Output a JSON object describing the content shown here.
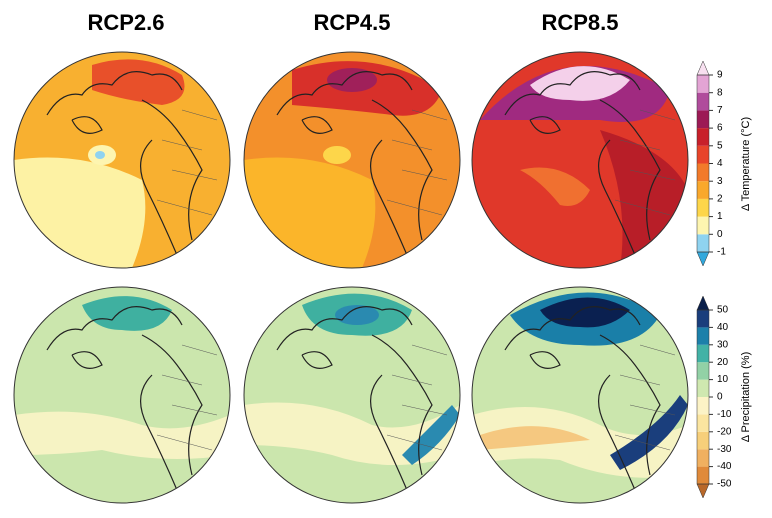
{
  "panels": [
    {
      "title": "RCP2.6"
    },
    {
      "title": "RCP4.5"
    },
    {
      "title": "RCP8.5"
    }
  ],
  "colorbars": [
    {
      "label": "Δ Temperature (°C)",
      "lim": [
        -1,
        9
      ],
      "ticks": [
        -1,
        0,
        1,
        2,
        3,
        4,
        5,
        6,
        7,
        8,
        9
      ],
      "colors": [
        "#8fd3f0",
        "#fdf5b0",
        "#fdd64a",
        "#f9a82c",
        "#f27a2a",
        "#e8442a",
        "#c8202a",
        "#9c1a55",
        "#b04c9c",
        "#e3a4d4"
      ],
      "under": "#32a8dc",
      "over": "#f8e0f0"
    },
    {
      "label": "Δ Precipitation (%)",
      "lim": [
        -50,
        50
      ],
      "ticks": [
        -50,
        -40,
        -30,
        -20,
        -10,
        0,
        10,
        20,
        30,
        40,
        50
      ],
      "colors": [
        "#e08a3a",
        "#f0b060",
        "#f7cf7a",
        "#fbe5a0",
        "#fcf3c6",
        "#cfe8b0",
        "#92d1a6",
        "#42b2a6",
        "#1c80aa",
        "#1a3e7c"
      ],
      "under": "#b8682a",
      "over": "#0a1f4a"
    }
  ]
}
